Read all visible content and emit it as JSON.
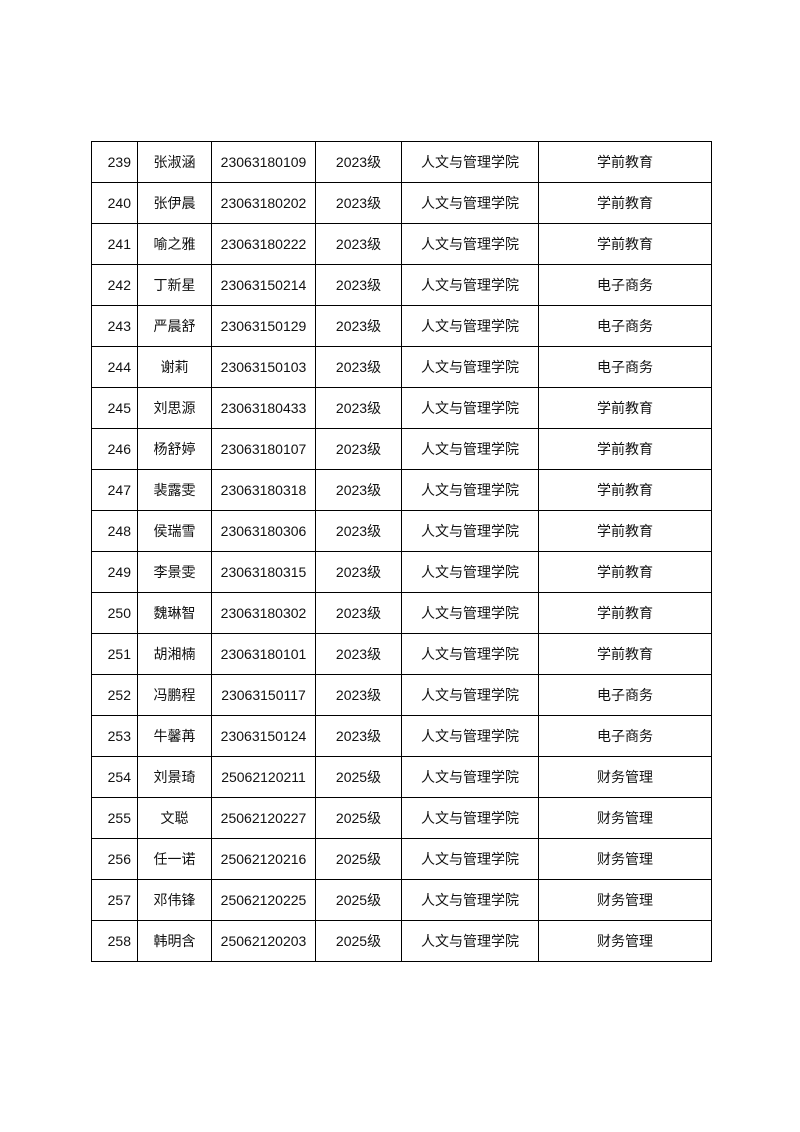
{
  "rows": [
    {
      "no": "239",
      "name": "张淑涵",
      "id": "23063180109",
      "grade": "2023级",
      "college": "人文与管理学院",
      "major": "学前教育"
    },
    {
      "no": "240",
      "name": "张伊晨",
      "id": "23063180202",
      "grade": "2023级",
      "college": "人文与管理学院",
      "major": "学前教育"
    },
    {
      "no": "241",
      "name": "喻之雅",
      "id": "23063180222",
      "grade": "2023级",
      "college": "人文与管理学院",
      "major": "学前教育"
    },
    {
      "no": "242",
      "name": "丁新星",
      "id": "23063150214",
      "grade": "2023级",
      "college": "人文与管理学院",
      "major": "电子商务"
    },
    {
      "no": "243",
      "name": "严晨舒",
      "id": "23063150129",
      "grade": "2023级",
      "college": "人文与管理学院",
      "major": "电子商务"
    },
    {
      "no": "244",
      "name": "谢莉",
      "id": "23063150103",
      "grade": "2023级",
      "college": "人文与管理学院",
      "major": "电子商务"
    },
    {
      "no": "245",
      "name": "刘思源",
      "id": "23063180433",
      "grade": "2023级",
      "college": "人文与管理学院",
      "major": "学前教育"
    },
    {
      "no": "246",
      "name": "杨舒婷",
      "id": "23063180107",
      "grade": "2023级",
      "college": "人文与管理学院",
      "major": "学前教育"
    },
    {
      "no": "247",
      "name": "裴露雯",
      "id": "23063180318",
      "grade": "2023级",
      "college": "人文与管理学院",
      "major": "学前教育"
    },
    {
      "no": "248",
      "name": "侯瑞雪",
      "id": "23063180306",
      "grade": "2023级",
      "college": "人文与管理学院",
      "major": "学前教育"
    },
    {
      "no": "249",
      "name": "李景雯",
      "id": "23063180315",
      "grade": "2023级",
      "college": "人文与管理学院",
      "major": "学前教育"
    },
    {
      "no": "250",
      "name": "魏琳智",
      "id": "23063180302",
      "grade": "2023级",
      "college": "人文与管理学院",
      "major": "学前教育"
    },
    {
      "no": "251",
      "name": "胡湘楠",
      "id": "23063180101",
      "grade": "2023级",
      "college": "人文与管理学院",
      "major": "学前教育"
    },
    {
      "no": "252",
      "name": "冯鹏程",
      "id": "23063150117",
      "grade": "2023级",
      "college": "人文与管理学院",
      "major": "电子商务"
    },
    {
      "no": "253",
      "name": "牛馨苒",
      "id": "23063150124",
      "grade": "2023级",
      "college": "人文与管理学院",
      "major": "电子商务"
    },
    {
      "no": "254",
      "name": "刘景琦",
      "id": "25062120211",
      "grade": "2025级",
      "college": "人文与管理学院",
      "major": "财务管理"
    },
    {
      "no": "255",
      "name": "文聪",
      "id": "25062120227",
      "grade": "2025级",
      "college": "人文与管理学院",
      "major": "财务管理"
    },
    {
      "no": "256",
      "name": "任一诺",
      "id": "25062120216",
      "grade": "2025级",
      "college": "人文与管理学院",
      "major": "财务管理"
    },
    {
      "no": "257",
      "name": "邓伟锋",
      "id": "25062120225",
      "grade": "2025级",
      "college": "人文与管理学院",
      "major": "财务管理"
    },
    {
      "no": "258",
      "name": "韩明含",
      "id": "25062120203",
      "grade": "2025级",
      "college": "人文与管理学院",
      "major": "财务管理"
    }
  ]
}
